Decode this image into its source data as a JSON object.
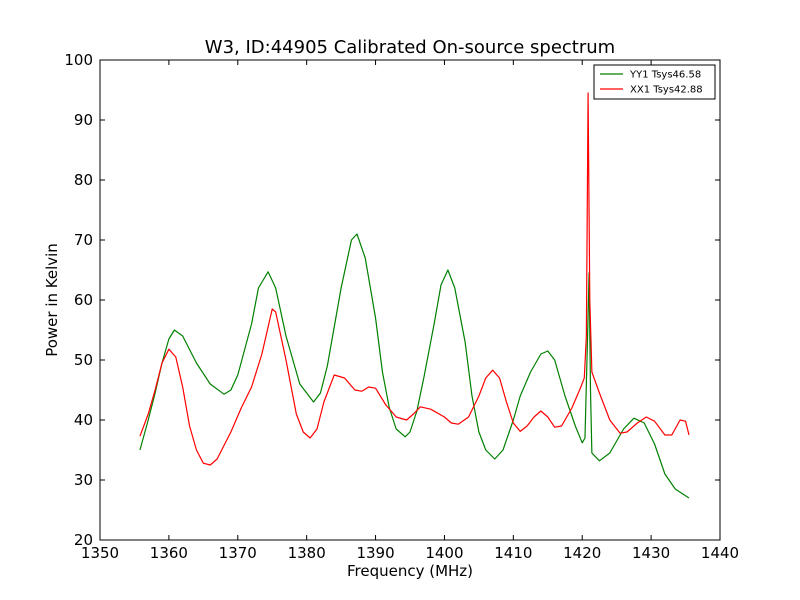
{
  "chart_data": {
    "type": "line",
    "title": "W3, ID:44905 Calibrated On-source spectrum",
    "xlabel": "Frequency (MHz)",
    "ylabel": "Power in Kelvin",
    "xlim": [
      1350,
      1440
    ],
    "ylim": [
      20,
      100
    ],
    "xticks": [
      1350,
      1360,
      1370,
      1380,
      1390,
      1400,
      1410,
      1420,
      1430,
      1440
    ],
    "yticks": [
      20,
      30,
      40,
      50,
      60,
      70,
      80,
      90,
      100
    ],
    "grid": false,
    "legend_position": "top-right",
    "series": [
      {
        "name": "YY1 Tsys46.58",
        "color": "#008000",
        "points": [
          [
            1355.8,
            35.0
          ],
          [
            1357,
            40.0
          ],
          [
            1358,
            44.5
          ],
          [
            1359,
            49.5
          ],
          [
            1360,
            53.5
          ],
          [
            1360.8,
            55.0
          ],
          [
            1362,
            54.0
          ],
          [
            1364,
            49.5
          ],
          [
            1366,
            46.0
          ],
          [
            1368,
            44.3
          ],
          [
            1369,
            45.0
          ],
          [
            1370,
            47.5
          ],
          [
            1372,
            56.0
          ],
          [
            1373,
            62.0
          ],
          [
            1374.4,
            64.7
          ],
          [
            1375.5,
            62.0
          ],
          [
            1377,
            54.0
          ],
          [
            1379,
            46.0
          ],
          [
            1381,
            43.0
          ],
          [
            1382,
            44.5
          ],
          [
            1383,
            49.0
          ],
          [
            1385,
            62.0
          ],
          [
            1386.5,
            70.0
          ],
          [
            1387.3,
            71.0
          ],
          [
            1388.5,
            67.0
          ],
          [
            1390,
            57.0
          ],
          [
            1391,
            48.0
          ],
          [
            1392,
            42.0
          ],
          [
            1393,
            38.5
          ],
          [
            1394.3,
            37.2
          ],
          [
            1395,
            38.0
          ],
          [
            1396,
            41.5
          ],
          [
            1397,
            47.0
          ],
          [
            1398.5,
            56.0
          ],
          [
            1399.5,
            62.5
          ],
          [
            1400.5,
            65.0
          ],
          [
            1401.5,
            62.0
          ],
          [
            1403,
            53.0
          ],
          [
            1404,
            44.0
          ],
          [
            1405,
            38.0
          ],
          [
            1406,
            35.0
          ],
          [
            1407.3,
            33.5
          ],
          [
            1408.5,
            35.0
          ],
          [
            1410,
            40.0
          ],
          [
            1411,
            44.0
          ],
          [
            1412.5,
            48.0
          ],
          [
            1414,
            51.0
          ],
          [
            1415,
            51.5
          ],
          [
            1416,
            50.0
          ],
          [
            1417.5,
            44.0
          ],
          [
            1419,
            39.0
          ],
          [
            1420,
            36.2
          ],
          [
            1420.4,
            37.0
          ],
          [
            1420.8,
            55.0
          ],
          [
            1421.0,
            64.5
          ],
          [
            1421.2,
            45.0
          ],
          [
            1421.4,
            34.5
          ],
          [
            1422.5,
            33.2
          ],
          [
            1424,
            34.5
          ],
          [
            1426,
            38.5
          ],
          [
            1427.5,
            40.3
          ],
          [
            1429,
            39.5
          ],
          [
            1430.5,
            36.0
          ],
          [
            1432,
            31.0
          ],
          [
            1433.5,
            28.5
          ],
          [
            1435.5,
            27.0
          ]
        ]
      },
      {
        "name": "XX1 Tsys42.88",
        "color": "#ff0000",
        "points": [
          [
            1355.8,
            37.3
          ],
          [
            1357,
            41.0
          ],
          [
            1358,
            45.0
          ],
          [
            1359,
            49.5
          ],
          [
            1360,
            51.8
          ],
          [
            1361,
            50.5
          ],
          [
            1362,
            45.5
          ],
          [
            1363,
            39.0
          ],
          [
            1364,
            35.0
          ],
          [
            1365,
            32.8
          ],
          [
            1366,
            32.5
          ],
          [
            1367,
            33.5
          ],
          [
            1369,
            38.0
          ],
          [
            1370.5,
            42.0
          ],
          [
            1372,
            45.5
          ],
          [
            1373.5,
            51.0
          ],
          [
            1375,
            58.5
          ],
          [
            1375.5,
            58.0
          ],
          [
            1377,
            50.0
          ],
          [
            1378.5,
            41.0
          ],
          [
            1379.5,
            38.0
          ],
          [
            1380.5,
            37.0
          ],
          [
            1381.5,
            38.5
          ],
          [
            1382.5,
            43.0
          ],
          [
            1384,
            47.5
          ],
          [
            1385.5,
            47.0
          ],
          [
            1387,
            45.0
          ],
          [
            1388,
            44.8
          ],
          [
            1389,
            45.5
          ],
          [
            1390,
            45.3
          ],
          [
            1391.5,
            42.5
          ],
          [
            1393,
            40.5
          ],
          [
            1394.5,
            40.0
          ],
          [
            1395.5,
            41.0
          ],
          [
            1396.5,
            42.2
          ],
          [
            1398,
            41.8
          ],
          [
            1400,
            40.5
          ],
          [
            1401,
            39.5
          ],
          [
            1402,
            39.3
          ],
          [
            1403.5,
            40.5
          ],
          [
            1405,
            44.0
          ],
          [
            1406,
            47.0
          ],
          [
            1407,
            48.3
          ],
          [
            1408,
            47.0
          ],
          [
            1409,
            43.0
          ],
          [
            1410,
            39.5
          ],
          [
            1411,
            38.1
          ],
          [
            1412,
            39.0
          ],
          [
            1413,
            40.5
          ],
          [
            1414,
            41.5
          ],
          [
            1415,
            40.5
          ],
          [
            1416,
            38.8
          ],
          [
            1417,
            39.0
          ],
          [
            1418.5,
            42.0
          ],
          [
            1419.8,
            45.5
          ],
          [
            1420.3,
            47.0
          ],
          [
            1420.6,
            54.0
          ],
          [
            1420.85,
            94.5
          ],
          [
            1421.1,
            60.0
          ],
          [
            1421.4,
            48.0
          ],
          [
            1422.5,
            44.5
          ],
          [
            1424,
            40.0
          ],
          [
            1425.5,
            37.8
          ],
          [
            1426.5,
            38.0
          ],
          [
            1428,
            39.5
          ],
          [
            1429.3,
            40.5
          ],
          [
            1430.5,
            39.8
          ],
          [
            1432,
            37.5
          ],
          [
            1433,
            37.5
          ],
          [
            1434.2,
            40.0
          ],
          [
            1435,
            39.8
          ],
          [
            1435.5,
            37.5
          ]
        ]
      }
    ]
  }
}
